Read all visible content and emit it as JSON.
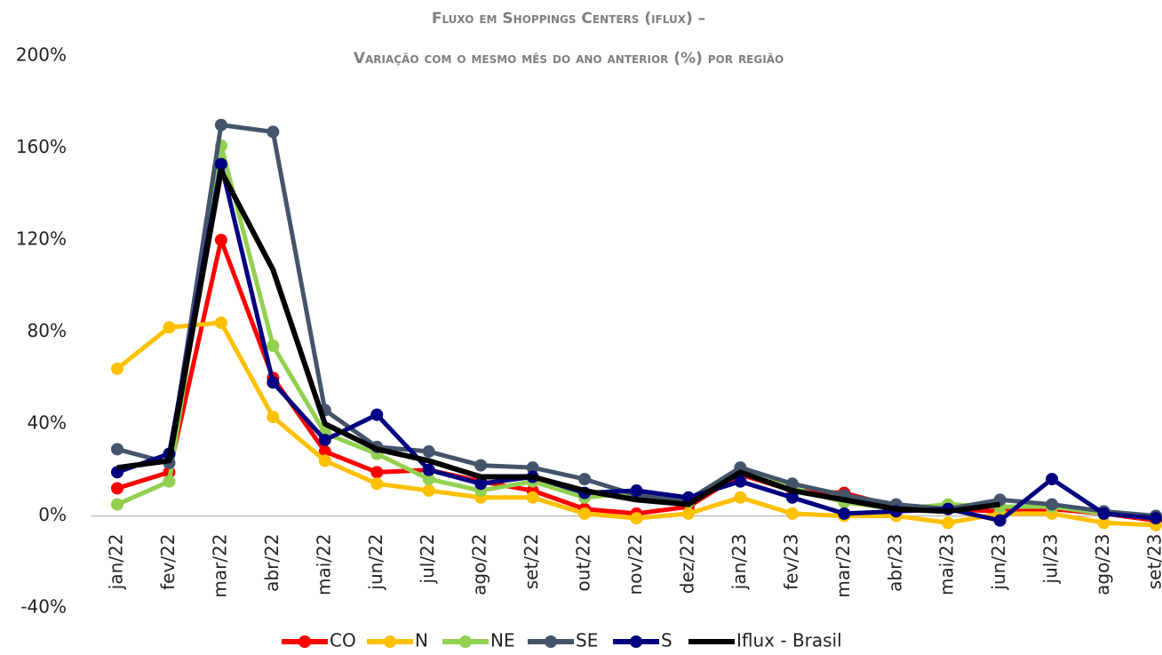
{
  "chart_data": {
    "type": "line",
    "title": "Fluxo em Shoppings Centers (iflux) –",
    "subtitle": "Variação com o mesmo mês do ano anterior (%) por região",
    "categories": [
      "jan/22",
      "fev/22",
      "mar/22",
      "abr/22",
      "mai/22",
      "jun/22",
      "jul/22",
      "ago/22",
      "set/22",
      "out/22",
      "nov/22",
      "dez/22",
      "jan/23",
      "fev/23",
      "mar/23",
      "abr/23",
      "mai/23",
      "jun/23",
      "jul/23",
      "ago/23",
      "set/23"
    ],
    "series": [
      {
        "name": "CO",
        "color": "#ff0000",
        "markers": true,
        "values": [
          12,
          19,
          120,
          60,
          28,
          19,
          20,
          15,
          11,
          3,
          1,
          4,
          18,
          11,
          10,
          4,
          3,
          2,
          3,
          1,
          -2
        ]
      },
      {
        "name": "N",
        "color": "#ffc000",
        "markers": true,
        "values": [
          64,
          82,
          84,
          43,
          24,
          14,
          11,
          8,
          8,
          1,
          -1,
          1,
          8,
          1,
          0,
          0,
          -3,
          1,
          1,
          -3,
          -4
        ]
      },
      {
        "name": "NE",
        "color": "#92d050",
        "markers": true,
        "values": [
          5,
          15,
          161,
          74,
          36,
          27,
          16,
          11,
          15,
          8,
          10,
          6,
          19,
          12,
          6,
          3,
          5,
          4,
          4,
          1,
          -1
        ]
      },
      {
        "name": "SE",
        "color": "#44546a",
        "markers": true,
        "values": [
          29,
          23,
          170,
          167,
          46,
          30,
          28,
          22,
          21,
          16,
          9,
          7,
          21,
          14,
          9,
          5,
          3,
          7,
          5,
          2,
          0
        ]
      },
      {
        "name": "S",
        "color": "#000080",
        "markers": true,
        "values": [
          19,
          27,
          153,
          58,
          33,
          44,
          20,
          14,
          17,
          10,
          11,
          8,
          15,
          8,
          1,
          2,
          3,
          -2,
          16,
          1,
          -1
        ]
      },
      {
        "name": "Iflux - Brasil",
        "color": "#000000",
        "markers": false,
        "values": [
          21,
          24,
          150,
          107,
          40,
          29,
          24,
          17,
          17,
          11,
          7,
          5,
          19,
          11,
          7,
          3,
          2,
          5,
          null,
          null,
          null
        ]
      }
    ],
    "ylim": [
      -40,
      200
    ],
    "yticks": [
      {
        "value": -40,
        "label": "-40%"
      },
      {
        "value": 0,
        "label": "0%"
      },
      {
        "value": 40,
        "label": "40%"
      },
      {
        "value": 80,
        "label": "80%"
      },
      {
        "value": 120,
        "label": "120%"
      },
      {
        "value": 160,
        "label": "160%"
      },
      {
        "value": 200,
        "label": "200%"
      }
    ],
    "legend": "bottom"
  }
}
